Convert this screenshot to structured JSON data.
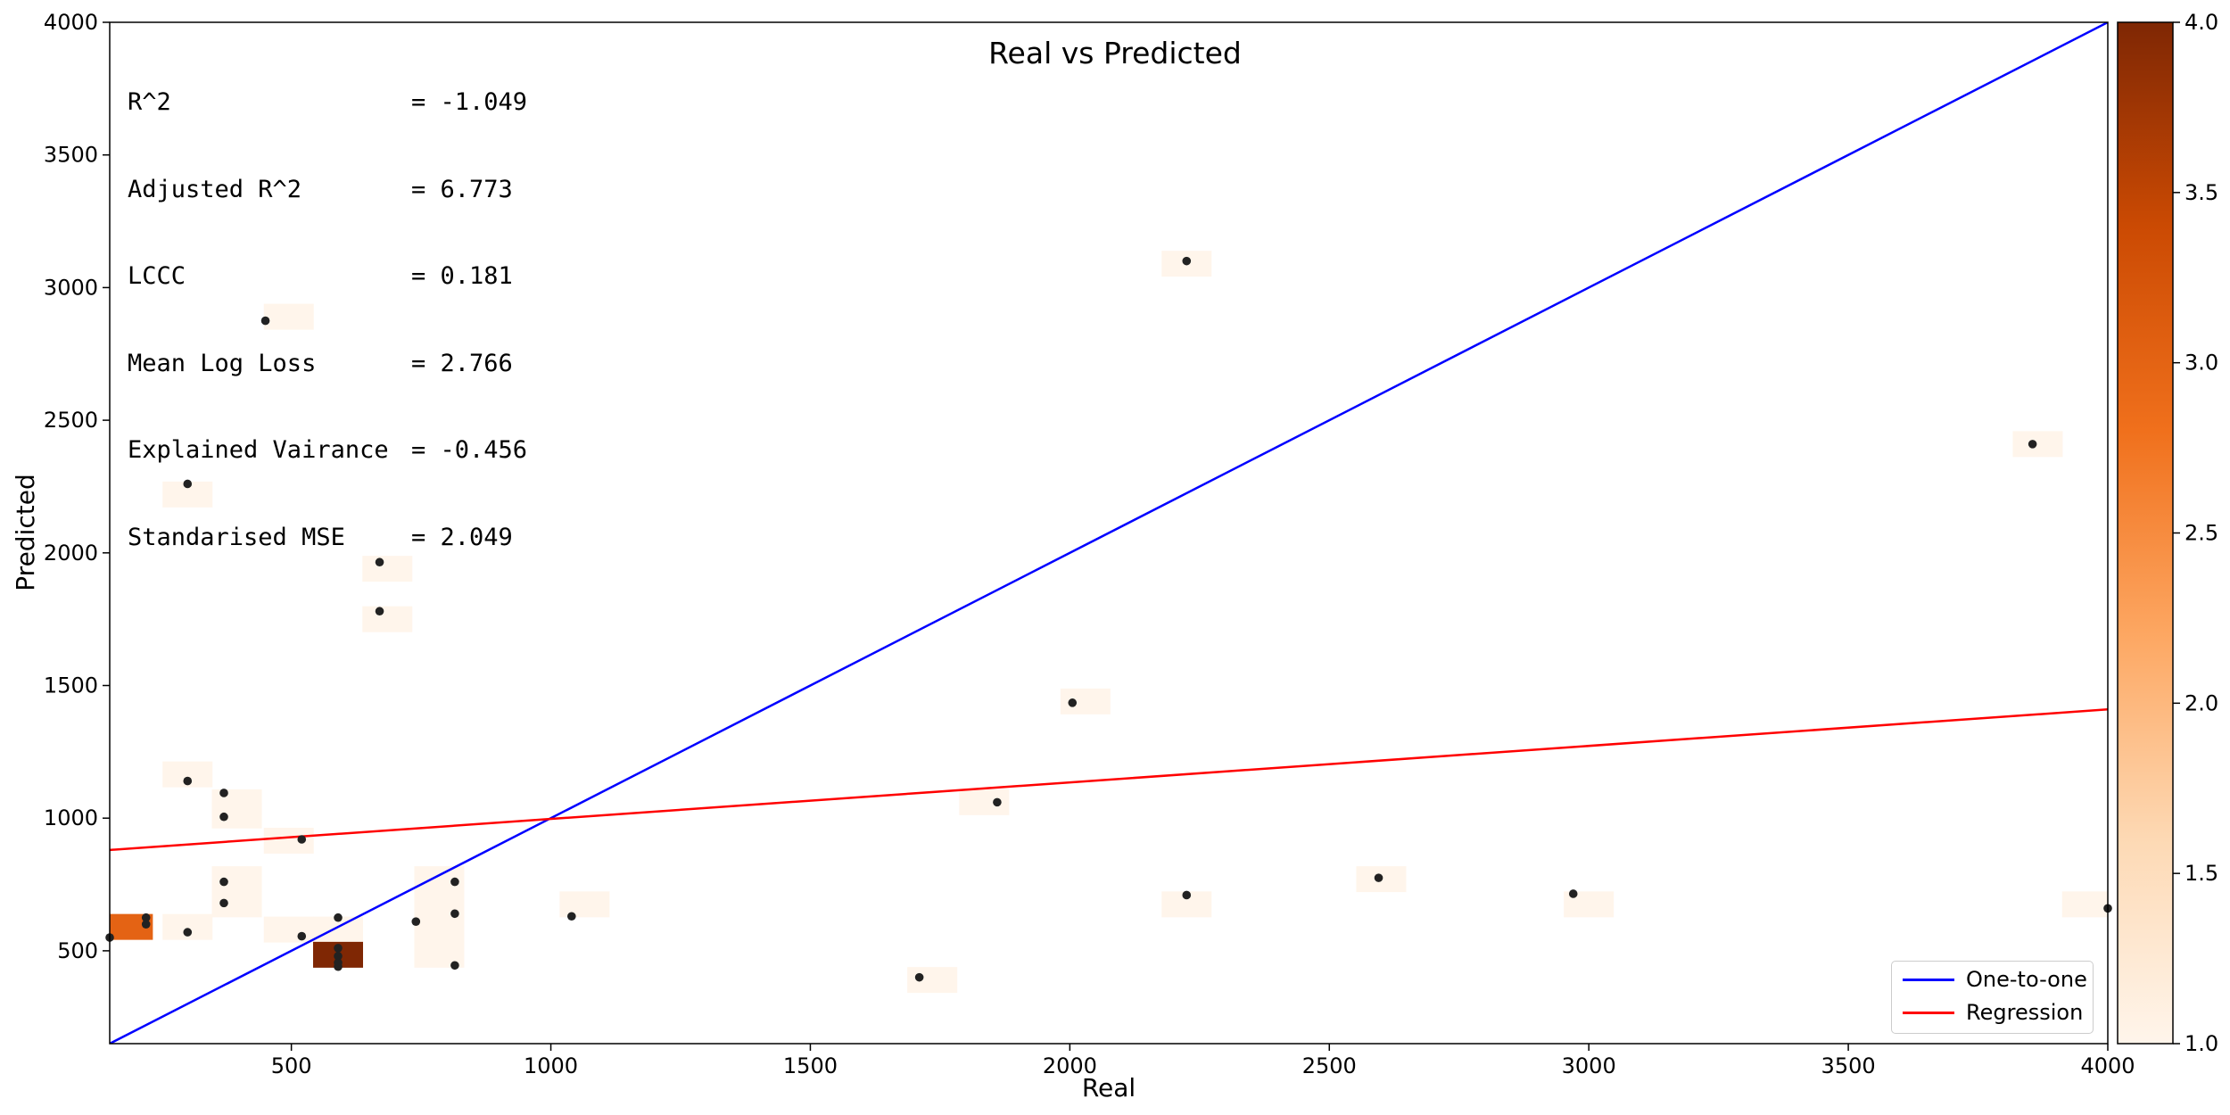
{
  "chart_data": {
    "type": "scatter",
    "title": "Real vs Predicted",
    "xlabel": "Real",
    "ylabel": "Predicted",
    "xlim": [
      150,
      4000
    ],
    "ylim": [
      150,
      4000
    ],
    "xticks": [
      500,
      1000,
      1500,
      2000,
      2500,
      3000,
      3500,
      4000
    ],
    "yticks": [
      500,
      1000,
      1500,
      2000,
      2500,
      3000,
      3500,
      4000
    ],
    "grid": false,
    "legend_position": "bottom-right",
    "legend": [
      {
        "name": "One-to-one",
        "color": "#0000ff"
      },
      {
        "name": "Regression",
        "color": "#ff0000"
      }
    ],
    "stats": [
      {
        "name": "R^2",
        "value": "= -1.049"
      },
      {
        "name": "Adjusted R^2",
        "value": "= 6.773"
      },
      {
        "name": "LCCC",
        "value": "= 0.181"
      },
      {
        "name": "Mean Log Loss",
        "value": "= 2.766"
      },
      {
        "name": "Explained Vairance",
        "value": "= -0.456"
      },
      {
        "name": "Standarised MSE",
        "value": "= 2.049"
      }
    ],
    "points": [
      [
        150,
        550
      ],
      [
        220,
        600
      ],
      [
        220,
        625
      ],
      [
        300,
        570
      ],
      [
        300,
        1140
      ],
      [
        300,
        2260
      ],
      [
        370,
        680
      ],
      [
        370,
        760
      ],
      [
        370,
        1005
      ],
      [
        370,
        1095
      ],
      [
        450,
        2875
      ],
      [
        520,
        555
      ],
      [
        520,
        920
      ],
      [
        590,
        440
      ],
      [
        590,
        455
      ],
      [
        590,
        480
      ],
      [
        590,
        510
      ],
      [
        590,
        625
      ],
      [
        670,
        1780
      ],
      [
        670,
        1965
      ],
      [
        740,
        610
      ],
      [
        815,
        445
      ],
      [
        815,
        640
      ],
      [
        815,
        760
      ],
      [
        1040,
        630
      ],
      [
        1710,
        400
      ],
      [
        1860,
        1060
      ],
      [
        2005,
        1435
      ],
      [
        2225,
        710
      ],
      [
        2225,
        3100
      ],
      [
        2595,
        775
      ],
      [
        2970,
        715
      ],
      [
        3855,
        2410
      ],
      [
        4000,
        660
      ]
    ],
    "hexbin": {
      "colormap": "Oranges",
      "cells": [
        {
          "x": 185,
          "y": 590,
          "count": 3
        },
        {
          "x": 300,
          "y": 1165,
          "count": 1
        },
        {
          "x": 300,
          "y": 2220,
          "count": 1
        },
        {
          "x": 300,
          "y": 590,
          "count": 1
        },
        {
          "x": 395,
          "y": 1060,
          "count": 1
        },
        {
          "x": 395,
          "y": 1010,
          "count": 1
        },
        {
          "x": 395,
          "y": 770,
          "count": 1
        },
        {
          "x": 395,
          "y": 675,
          "count": 1
        },
        {
          "x": 495,
          "y": 2890,
          "count": 1
        },
        {
          "x": 495,
          "y": 915,
          "count": 1
        },
        {
          "x": 495,
          "y": 580,
          "count": 1
        },
        {
          "x": 590,
          "y": 580,
          "count": 1
        },
        {
          "x": 590,
          "y": 485,
          "count": 4
        },
        {
          "x": 685,
          "y": 1940,
          "count": 1
        },
        {
          "x": 685,
          "y": 1750,
          "count": 1
        },
        {
          "x": 785,
          "y": 770,
          "count": 1
        },
        {
          "x": 785,
          "y": 675,
          "count": 1
        },
        {
          "x": 785,
          "y": 580,
          "count": 1
        },
        {
          "x": 785,
          "y": 485,
          "count": 1
        },
        {
          "x": 1065,
          "y": 675,
          "count": 1
        },
        {
          "x": 1735,
          "y": 390,
          "count": 1
        },
        {
          "x": 1835,
          "y": 1060,
          "count": 1
        },
        {
          "x": 2030,
          "y": 1440,
          "count": 1
        },
        {
          "x": 2225,
          "y": 675,
          "count": 1
        },
        {
          "x": 2225,
          "y": 3090,
          "count": 1
        },
        {
          "x": 2600,
          "y": 770,
          "count": 1
        },
        {
          "x": 3000,
          "y": 675,
          "count": 1
        },
        {
          "x": 3865,
          "y": 2410,
          "count": 1
        },
        {
          "x": 3960,
          "y": 675,
          "count": 1
        }
      ]
    },
    "one_to_one": {
      "x": [
        150,
        4000
      ],
      "y": [
        150,
        4000
      ]
    },
    "regression": {
      "x": [
        150,
        4000
      ],
      "y": [
        880,
        1410
      ]
    },
    "colorbar": {
      "range": [
        1.0,
        4.0
      ],
      "ticks": [
        "1.0",
        "1.5",
        "2.0",
        "2.5",
        "3.0",
        "3.5",
        "4.0"
      ]
    }
  }
}
